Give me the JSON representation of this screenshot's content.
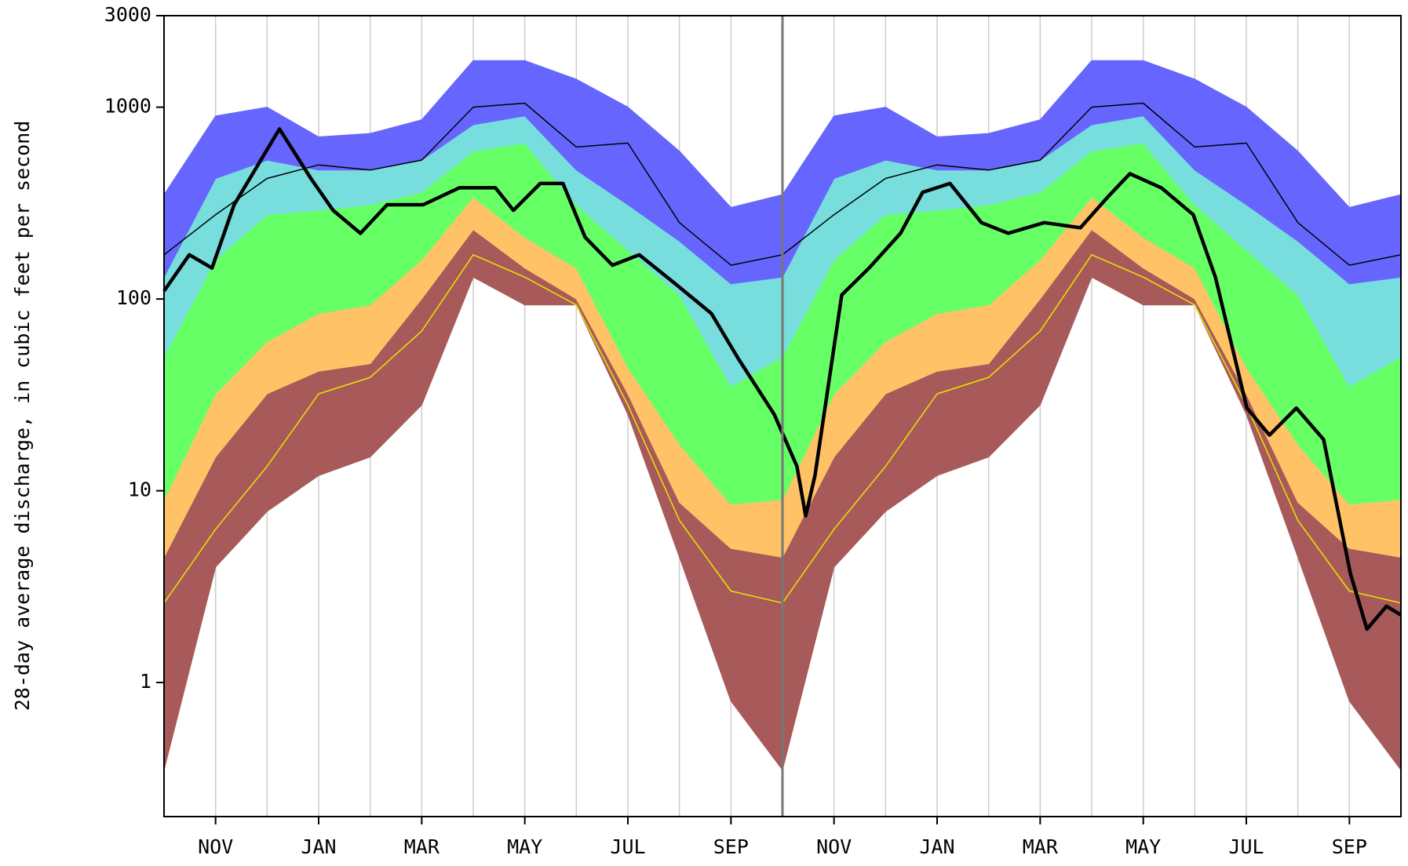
{
  "chart_data": {
    "type": "percentile_bands",
    "y_label": "28-day average discharge, in cubic feet per second",
    "log_y": true,
    "ylim": [
      0.2,
      3000
    ],
    "yticks": [
      1,
      10,
      100,
      1000,
      3000
    ],
    "xlim": [
      0,
      24
    ],
    "xticks": [
      {
        "value": 1,
        "label": "NOV"
      },
      {
        "value": 3,
        "label": "JAN"
      },
      {
        "value": 5,
        "label": "MAR"
      },
      {
        "value": 7,
        "label": "MAY"
      },
      {
        "value": 9,
        "label": "JUL"
      },
      {
        "value": 11,
        "label": "SEP"
      },
      {
        "value": 13,
        "label": "NOV"
      },
      {
        "value": 15,
        "label": "JAN"
      },
      {
        "value": 17,
        "label": "MAR"
      },
      {
        "value": 19,
        "label": "MAY"
      },
      {
        "value": 21,
        "label": "JUL"
      },
      {
        "value": 23,
        "label": "SEP"
      }
    ],
    "xgrid": [
      1,
      2,
      3,
      4,
      5,
      6,
      7,
      8,
      9,
      10,
      11,
      13,
      14,
      15,
      16,
      17,
      18,
      19,
      20,
      21,
      22,
      23
    ],
    "year_boundary": 12,
    "x": [
      0,
      1,
      2,
      3,
      4,
      5,
      6,
      7,
      8,
      9,
      10,
      11,
      12,
      13,
      14,
      15,
      16,
      17,
      18,
      19,
      20,
      21,
      22,
      23,
      24
    ],
    "floor": [
      0.35,
      4,
      7.8,
      12,
      15,
      28,
      130,
      93,
      93,
      25,
      4.5,
      0.8,
      0.35,
      4,
      7.8,
      12,
      15,
      28,
      130,
      93,
      93,
      25,
      4.5,
      0.8,
      0.35
    ],
    "bands": [
      {
        "color": "#a85a5a",
        "values": [
          4.5,
          15,
          32,
          42,
          46,
          100,
          230,
          145,
          100,
          32,
          8.7,
          5,
          4.5,
          15,
          32,
          42,
          46,
          100,
          230,
          145,
          100,
          32,
          8.7,
          5,
          4.5
        ]
      },
      {
        "color": "#ffc266",
        "values": [
          9,
          32,
          60,
          84,
          93,
          160,
          340,
          210,
          145,
          44,
          17.5,
          8.5,
          9,
          32,
          60,
          84,
          93,
          160,
          340,
          210,
          145,
          44,
          17.5,
          8.5,
          9
        ]
      },
      {
        "color": "#66ff66",
        "values": [
          50,
          160,
          275,
          290,
          310,
          360,
          590,
          650,
          310,
          180,
          105,
          35,
          50,
          160,
          275,
          290,
          310,
          360,
          590,
          650,
          310,
          180,
          105,
          35,
          50
        ]
      },
      {
        "color": "#77dddd",
        "values": [
          130,
          425,
          530,
          470,
          470,
          530,
          810,
          900,
          470,
          310,
          200,
          120,
          130,
          425,
          530,
          470,
          470,
          530,
          810,
          900,
          470,
          310,
          200,
          120,
          130
        ]
      },
      {
        "color": "#6666ff",
        "values": [
          350,
          900,
          1000,
          700,
          730,
          860,
          1750,
          1750,
          1400,
          1000,
          590,
          300,
          350,
          900,
          1000,
          700,
          730,
          860,
          1750,
          1750,
          1400,
          1000,
          590,
          300,
          350
        ]
      }
    ],
    "lines": [
      {
        "color": "#e6e600",
        "width": 1.5,
        "values": [
          2.6,
          6.3,
          13.4,
          32,
          39,
          68,
          170,
          130,
          93,
          28,
          7,
          3,
          2.6,
          6.3,
          13.4,
          32,
          39,
          68,
          170,
          130,
          93,
          28,
          7,
          3,
          2.6
        ]
      },
      {
        "color": "#000000",
        "width": 1.5,
        "values": [
          170,
          275,
          425,
          500,
          470,
          530,
          1000,
          1050,
          620,
          650,
          250,
          150,
          170,
          275,
          425,
          500,
          470,
          530,
          1000,
          1050,
          620,
          650,
          250,
          150,
          170
        ]
      },
      {
        "color": "#000000",
        "width": 4.5,
        "x": [
          0,
          0.49,
          0.93,
          1.36,
          2.24,
          2.85,
          3.28,
          3.81,
          4.33,
          5.03,
          5.73,
          6.43,
          6.78,
          7.3,
          7.74,
          8.17,
          8.7,
          9.22,
          9.92,
          10.62,
          11.14,
          11.84,
          12.28,
          12.45,
          12.63,
          13.15,
          13.68,
          14.29,
          14.72,
          15.25,
          15.86,
          16.38,
          17.08,
          17.78,
          18.31,
          18.74,
          19.35,
          19.97,
          20.4,
          21.01,
          21.45,
          21.97,
          22.5,
          23.02,
          23.34,
          23.72,
          24
        ],
        "values": [
          110,
          170,
          145,
          310,
          770,
          425,
          290,
          220,
          310,
          310,
          380,
          380,
          290,
          400,
          400,
          210,
          150,
          170,
          120,
          84,
          49,
          25,
          13.4,
          7.4,
          12,
          105,
          145,
          220,
          360,
          400,
          250,
          220,
          250,
          235,
          340,
          450,
          380,
          275,
          130,
          27,
          19.5,
          27,
          18.5,
          3.7,
          1.9,
          2.5,
          2.25
        ]
      }
    ]
  }
}
